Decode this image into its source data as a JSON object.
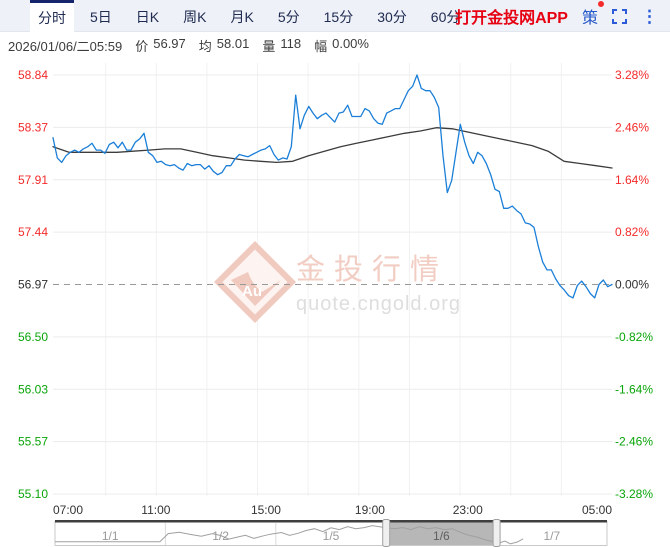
{
  "header": {
    "tabs": [
      {
        "label": "分时",
        "active": true
      },
      {
        "label": "5日",
        "active": false
      },
      {
        "label": "日K",
        "active": false
      },
      {
        "label": "周K",
        "active": false
      },
      {
        "label": "月K",
        "active": false
      },
      {
        "label": "5分",
        "active": false
      },
      {
        "label": "15分",
        "active": false
      },
      {
        "label": "30分",
        "active": false
      },
      {
        "label": "60分",
        "active": false
      }
    ],
    "app_link": "打开金投网APP",
    "strategy": "策"
  },
  "info": {
    "datetime": "2026/01/06/二05:59",
    "price_label": "价",
    "price": "56.97",
    "avg_label": "均",
    "avg": "58.01",
    "volume_label": "量",
    "volume": "118",
    "range_label": "幅",
    "range": "0.00%"
  },
  "watermark": {
    "logo": "Au",
    "title": "金投行情",
    "url": "quote.cngold.org"
  },
  "colors": {
    "price_line": "#1b7fd8",
    "avg_line": "#3c3c3c",
    "up": "#f42a2a",
    "down": "#0aa50a",
    "neutral": "#2f2f2f",
    "tab_accent": "#16246b",
    "app_link_red": "#e60012",
    "icon_blue": "#2b5bd7",
    "watermark_pink": "#f2cdc3",
    "watermark_gray": "#dedede"
  },
  "chart_data": {
    "type": "line",
    "title": "",
    "x_axis": {
      "labels": [
        "07:00",
        "11:00",
        "15:00",
        "19:00",
        "23:00",
        "05:00"
      ]
    },
    "y_axis": {
      "price_labels": [
        "58.84",
        "58.37",
        "57.91",
        "57.44",
        "56.97",
        "56.50",
        "56.03",
        "55.57",
        "55.10"
      ],
      "percent_labels": [
        "3.28%",
        "2.46%",
        "1.64%",
        "0.82%",
        "0.00%",
        "-0.82%",
        "-1.64%",
        "-2.46%",
        "-3.28%"
      ]
    },
    "prev_close": 56.97,
    "price_range": [
      55.1,
      58.84
    ],
    "grid": true,
    "series": [
      {
        "name": "price",
        "color": "#1b7fd8",
        "values": [
          58.28,
          58.1,
          58.06,
          58.12,
          58.15,
          58.17,
          58.15,
          58.18,
          58.2,
          58.23,
          58.17,
          58.17,
          58.14,
          58.22,
          58.24,
          58.19,
          58.24,
          58.17,
          58.17,
          58.24,
          58.27,
          58.32,
          58.15,
          58.12,
          58.06,
          58.07,
          58.04,
          58.03,
          58.04,
          58.01,
          57.99,
          58.05,
          58.03,
          58.04,
          58.04,
          58.0,
          58.03,
          57.98,
          57.95,
          57.97,
          58.03,
          58.03,
          58.09,
          58.13,
          58.12,
          58.11,
          58.13,
          58.15,
          58.17,
          58.18,
          58.21,
          58.13,
          58.08,
          58.1,
          58.09,
          58.2,
          58.66,
          58.36,
          58.48,
          58.56,
          58.5,
          58.45,
          58.48,
          58.5,
          58.46,
          58.42,
          58.5,
          58.51,
          58.57,
          58.47,
          58.47,
          58.47,
          58.54,
          58.52,
          58.45,
          58.41,
          58.4,
          58.5,
          58.52,
          58.54,
          58.54,
          58.62,
          58.7,
          58.74,
          58.84,
          58.72,
          58.7,
          58.7,
          58.64,
          58.55,
          58.12,
          57.79,
          57.9,
          58.15,
          58.4,
          58.24,
          58.12,
          58.05,
          58.15,
          58.12,
          58.05,
          57.95,
          57.82,
          57.8,
          57.65,
          57.65,
          57.67,
          57.63,
          57.6,
          57.52,
          57.51,
          57.48,
          57.31,
          57.17,
          57.1,
          57.1,
          57.02,
          56.96,
          56.92,
          56.87,
          56.85,
          56.96,
          57.0,
          56.95,
          56.89,
          56.85,
          56.97,
          57.01,
          56.95,
          56.97
        ]
      },
      {
        "name": "average",
        "color": "#3c3c3c",
        "values": [
          58.2,
          58.15,
          58.15,
          58.15,
          58.15,
          58.16,
          58.17,
          58.18,
          58.18,
          58.15,
          58.12,
          58.1,
          58.08,
          58.07,
          58.06,
          58.07,
          58.12,
          58.16,
          58.2,
          58.23,
          58.26,
          58.29,
          58.32,
          58.34,
          58.37,
          58.36,
          58.33,
          58.3,
          58.27,
          58.24,
          58.21,
          58.16,
          58.07,
          58.05,
          58.03,
          58.01
        ]
      }
    ],
    "navigator": {
      "segments": [
        "1/1",
        "1/2",
        "1/5",
        "1/6",
        "1/7"
      ],
      "selected_index": 3,
      "selected_label": "1/6",
      "spark": [
        [
          0.0,
          0.85
        ],
        [
          0.19,
          0.85
        ],
        [
          0.205,
          0.48
        ],
        [
          0.225,
          0.42
        ],
        [
          0.245,
          0.52
        ],
        [
          0.265,
          0.6
        ],
        [
          0.285,
          0.48
        ],
        [
          0.3,
          0.57
        ],
        [
          0.315,
          0.73
        ],
        [
          0.33,
          0.64
        ],
        [
          0.345,
          0.56
        ],
        [
          0.36,
          0.7
        ],
        [
          0.375,
          0.6
        ],
        [
          0.39,
          0.51
        ],
        [
          0.41,
          0.43
        ],
        [
          0.425,
          0.56
        ],
        [
          0.44,
          0.47
        ],
        [
          0.455,
          0.34
        ],
        [
          0.47,
          0.26
        ],
        [
          0.485,
          0.39
        ],
        [
          0.5,
          0.22
        ],
        [
          0.515,
          0.3
        ],
        [
          0.53,
          0.17
        ],
        [
          0.545,
          0.26
        ],
        [
          0.56,
          0.21
        ],
        [
          0.575,
          0.12
        ],
        [
          0.6,
          0.22
        ],
        [
          0.615,
          0.26
        ],
        [
          0.63,
          0.21
        ],
        [
          0.645,
          0.3
        ],
        [
          0.66,
          0.17
        ],
        [
          0.675,
          0.26
        ],
        [
          0.69,
          0.21
        ],
        [
          0.705,
          0.3
        ],
        [
          0.72,
          0.26
        ],
        [
          0.735,
          0.43
        ],
        [
          0.75,
          0.56
        ],
        [
          0.765,
          0.64
        ],
        [
          0.78,
          0.77
        ],
        [
          0.795,
          0.86
        ],
        [
          0.805,
          0.91
        ],
        [
          0.815,
          0.82
        ],
        [
          0.825,
          0.95
        ],
        [
          0.838,
          0.86
        ],
        [
          0.848,
          0.72
        ]
      ]
    }
  }
}
